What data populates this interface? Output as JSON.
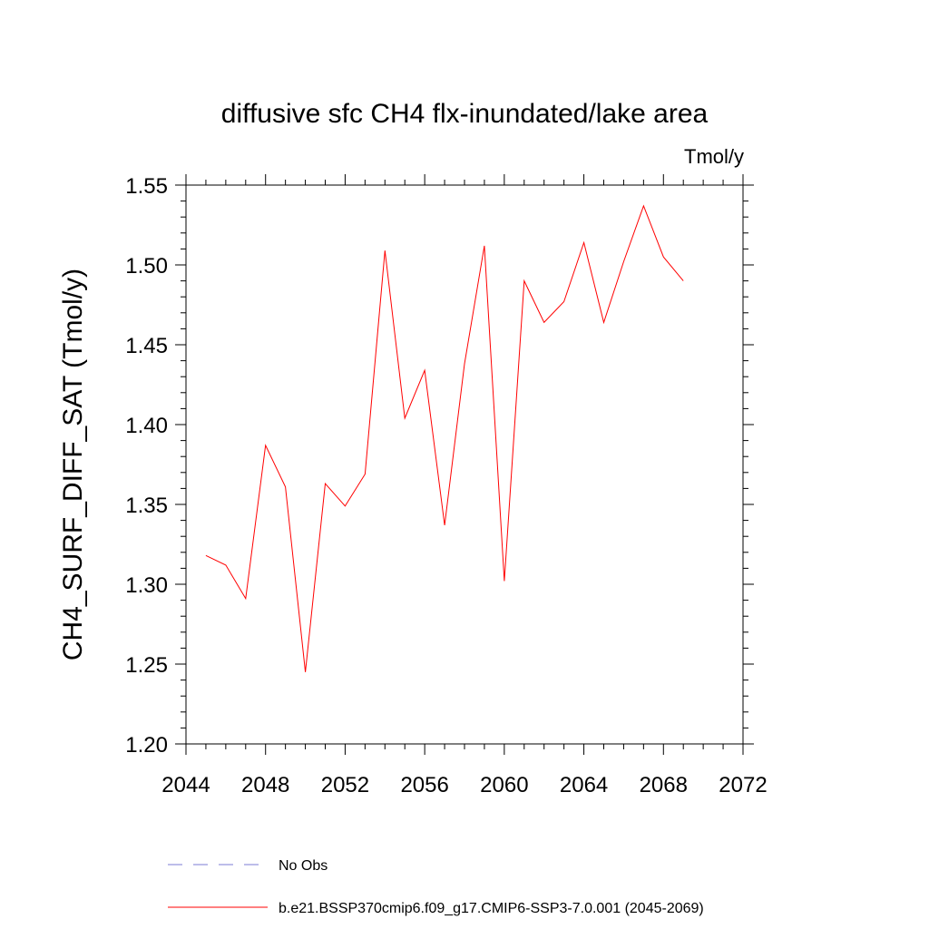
{
  "chart_data": {
    "type": "line",
    "title": "diffusive sfc CH4 flx-inundated/lake area",
    "units_label": "Tmol/y",
    "ylabel": "CH4_SURF_DIFF_SAT  (Tmol/y)",
    "xlabel": "",
    "xlim": [
      2044,
      2072
    ],
    "ylim": [
      1.2,
      1.55
    ],
    "x_ticks": [
      "2044",
      "2048",
      "2052",
      "2056",
      "2060",
      "2064",
      "2068",
      "2072"
    ],
    "y_ticks": [
      "1.20",
      "1.25",
      "1.30",
      "1.35",
      "1.40",
      "1.45",
      "1.50",
      "1.55"
    ],
    "grid": false,
    "legend_position": "bottom",
    "series": [
      {
        "name": "b.e21.BSSP370cmip6.f09_g17.CMIP6-SSP3-7.0.001 (2045-2069)",
        "color": "#ff0000",
        "style": "solid",
        "x": [
          2045,
          2046,
          2047,
          2048,
          2049,
          2050,
          2051,
          2052,
          2053,
          2054,
          2055,
          2056,
          2057,
          2058,
          2059,
          2060,
          2061,
          2062,
          2063,
          2064,
          2065,
          2066,
          2067,
          2068,
          2069
        ],
        "y": [
          1.318,
          1.312,
          1.291,
          1.387,
          1.361,
          1.245,
          1.363,
          1.349,
          1.369,
          1.509,
          1.404,
          1.434,
          1.337,
          1.438,
          1.512,
          1.302,
          1.49,
          1.464,
          1.477,
          1.514,
          1.464,
          1.502,
          1.537,
          1.505,
          1.49
        ]
      },
      {
        "name": "No Obs",
        "color": "#7b7bd6",
        "style": "dashed",
        "x": [],
        "y": []
      }
    ]
  }
}
